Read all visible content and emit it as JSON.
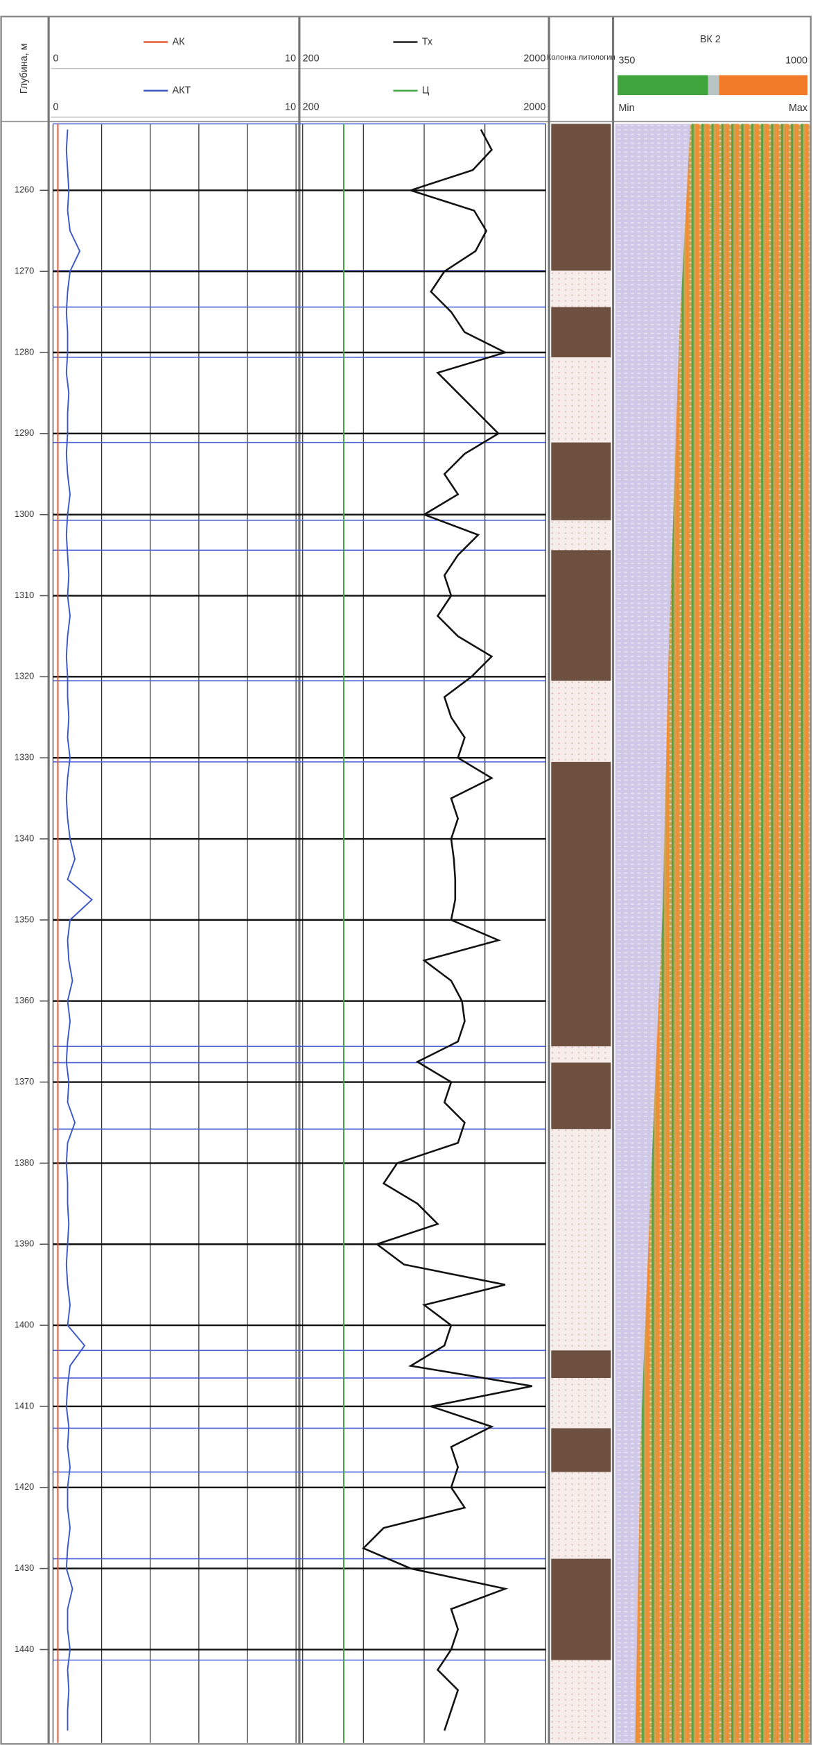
{
  "chart_data": {
    "type": "well_log",
    "depth_label": "Глубина, м",
    "ylim": [
      1251.8,
      1451.5
    ],
    "yticks": [
      1260,
      1270,
      1280,
      1290,
      1300,
      1310,
      1320,
      1330,
      1340,
      1350,
      1360,
      1370,
      1380,
      1390,
      1400,
      1410,
      1420,
      1430,
      1440
    ],
    "depth": [
      1252.5,
      1255,
      1257.5,
      1260,
      1262.5,
      1265,
      1267.5,
      1270,
      1272.5,
      1275,
      1277.5,
      1280,
      1282.5,
      1285,
      1287.5,
      1290,
      1292.5,
      1295,
      1297.5,
      1300,
      1302.5,
      1305,
      1307.5,
      1310,
      1312.5,
      1315,
      1317.5,
      1320,
      1322.5,
      1325,
      1327.5,
      1330,
      1332.5,
      1335,
      1337.5,
      1340,
      1342.5,
      1345,
      1347.5,
      1350,
      1352.5,
      1355,
      1357.5,
      1360,
      1362.5,
      1365,
      1367.5,
      1370,
      1372.5,
      1375,
      1377.5,
      1380,
      1382.5,
      1385,
      1387.5,
      1390,
      1392.5,
      1395,
      1397.5,
      1400,
      1402.5,
      1405,
      1407.5,
      1410,
      1412.5,
      1415,
      1417.5,
      1420,
      1422.5,
      1425,
      1427.5,
      1430,
      1432.5,
      1435,
      1437.5,
      1440,
      1442.5,
      1445,
      1447.5,
      1450
    ],
    "tracks": [
      {
        "series": [
          {
            "name": "АК",
            "color": "#e8502a",
            "xlim": [
              0,
              10
            ],
            "xticks": [
              0,
              10
            ],
            "depth": [
              1251.8,
              1451.5
            ],
            "values": [
              0.2,
              0.2
            ]
          },
          {
            "name": "АКТ",
            "color": "#3a56c8",
            "xlim": [
              0,
              10
            ],
            "xticks": [
              0,
              10
            ],
            "values": [
              0.6,
              0.55,
              0.6,
              0.65,
              0.6,
              0.7,
              1.1,
              0.7,
              0.6,
              0.55,
              0.6,
              0.6,
              0.55,
              0.65,
              0.6,
              0.6,
              0.55,
              0.6,
              0.7,
              0.6,
              0.55,
              0.6,
              0.65,
              0.6,
              0.7,
              0.6,
              0.55,
              0.6,
              0.6,
              0.65,
              0.6,
              0.7,
              0.6,
              0.55,
              0.6,
              0.7,
              0.9,
              0.6,
              1.6,
              0.7,
              0.6,
              0.65,
              0.8,
              0.6,
              0.7,
              0.6,
              0.55,
              0.65,
              0.6,
              0.9,
              0.6,
              0.55,
              0.6,
              0.6,
              0.65,
              0.6,
              0.55,
              0.6,
              0.7,
              0.6,
              1.3,
              0.7,
              0.6,
              0.55,
              0.65,
              0.6,
              0.7,
              0.6,
              0.6,
              0.7,
              0.6,
              0.55,
              0.8,
              0.6,
              0.6,
              0.7,
              0.6,
              0.65,
              0.6,
              0.6
            ]
          }
        ]
      },
      {
        "series": [
          {
            "name": "Тх",
            "color": "#111111",
            "xlim": [
              200,
              2000
            ],
            "xticks": [
              200,
              2000
            ],
            "values": [
              1520,
              1600,
              1460,
              1000,
              1470,
              1560,
              1480,
              1250,
              1150,
              1300,
              1400,
              1700,
              1200,
              1350,
              1500,
              1650,
              1400,
              1250,
              1350,
              1100,
              1500,
              1350,
              1250,
              1300,
              1200,
              1350,
              1600,
              1450,
              1250,
              1300,
              1400,
              1350,
              1600,
              1300,
              1350,
              1300,
              1320,
              1330,
              1330,
              1300,
              1650,
              1100,
              1300,
              1380,
              1400,
              1350,
              1050,
              1300,
              1250,
              1400,
              1350,
              900,
              800,
              1050,
              1200,
              750,
              950,
              1700,
              1100,
              1300,
              1250,
              1000,
              1900,
              1150,
              1600,
              1300,
              1350,
              1300,
              1400,
              800,
              650,
              1000,
              1700,
              1300,
              1350,
              1300,
              1200,
              1350,
              1300,
              1250
            ]
          },
          {
            "name": "Ц",
            "color": "#3aa83a",
            "xlim": [
              200,
              2000
            ],
            "xticks": [
              200,
              2000
            ],
            "depth": [
              1251.8,
              1451.5
            ],
            "values": [
              504,
              504
            ]
          }
        ]
      }
    ],
    "lithology": {
      "title": "Колонка литологии",
      "intervals": [
        {
          "top": 1251.8,
          "bottom": 1269.9,
          "color": "#6e5040"
        },
        {
          "top": 1269.9,
          "bottom": 1274.4,
          "color": "#f6ecea"
        },
        {
          "top": 1274.4,
          "bottom": 1280.6,
          "color": "#6e5040"
        },
        {
          "top": 1280.6,
          "bottom": 1291.1,
          "color": "#f6ecea"
        },
        {
          "top": 1291.1,
          "bottom": 1300.7,
          "color": "#6e5040"
        },
        {
          "top": 1300.7,
          "bottom": 1304.4,
          "color": "#f6ecea"
        },
        {
          "top": 1304.4,
          "bottom": 1320.5,
          "color": "#6e5040"
        },
        {
          "top": 1320.5,
          "bottom": 1330.5,
          "color": "#f6ecea"
        },
        {
          "top": 1330.5,
          "bottom": 1365.6,
          "color": "#6e5040"
        },
        {
          "top": 1365.6,
          "bottom": 1367.6,
          "color": "#f6ecea"
        },
        {
          "top": 1367.6,
          "bottom": 1375.8,
          "color": "#6e5040"
        },
        {
          "top": 1375.8,
          "bottom": 1403.1,
          "color": "#f6ecea"
        },
        {
          "top": 1403.1,
          "bottom": 1406.5,
          "color": "#6e5040"
        },
        {
          "top": 1406.5,
          "bottom": 1412.7,
          "color": "#f6ecea"
        },
        {
          "top": 1412.7,
          "bottom": 1418.1,
          "color": "#6e5040"
        },
        {
          "top": 1418.1,
          "bottom": 1428.8,
          "color": "#f6ecea"
        },
        {
          "top": 1428.8,
          "bottom": 1441.3,
          "color": "#6e5040"
        },
        {
          "top": 1441.3,
          "bottom": 1451.5,
          "color": "#f6ecea"
        }
      ]
    },
    "image_track": {
      "title": "ВК 2",
      "xticks": [
        350,
        1000
      ],
      "min_label": "Min",
      "max_label": "Max"
    }
  }
}
